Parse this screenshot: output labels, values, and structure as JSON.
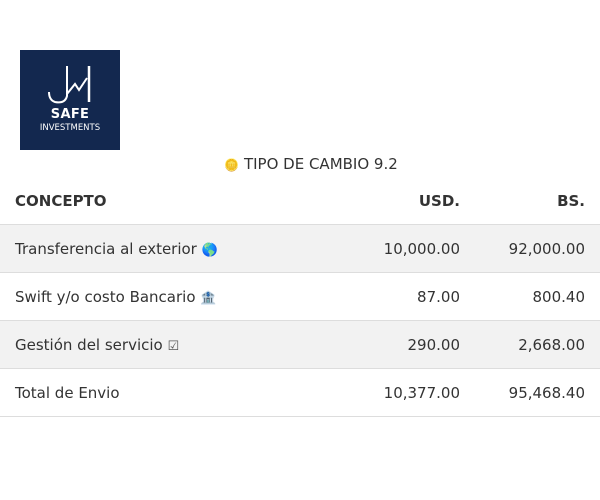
{
  "logo": {
    "line1": "SAFE",
    "line2": "INVESTMENTS",
    "brand_color": "#13284f"
  },
  "exchange_rate": {
    "icon": "coin-icon",
    "label": "TIPO DE CAMBIO 9.2"
  },
  "table": {
    "headers": {
      "concept": "CONCEPTO",
      "usd": "USD.",
      "bs": "BS."
    },
    "rows": [
      {
        "concept": "Transferencia al exterior",
        "icon": "globe-icon",
        "glyph": "🌎",
        "usd": "10,000.00",
        "bs": "92,000.00"
      },
      {
        "concept": "Swift y/o costo Bancario",
        "icon": "bank-icon",
        "glyph": "🏦",
        "usd": "87.00",
        "bs": "800.40"
      },
      {
        "concept": "Gestión del servicio",
        "icon": "checkbox-icon",
        "glyph": "☑",
        "usd": "290.00",
        "bs": "2,668.00"
      },
      {
        "concept": "Total de Envio",
        "usd": "10,377.00",
        "bs": "95,468.40"
      }
    ]
  }
}
